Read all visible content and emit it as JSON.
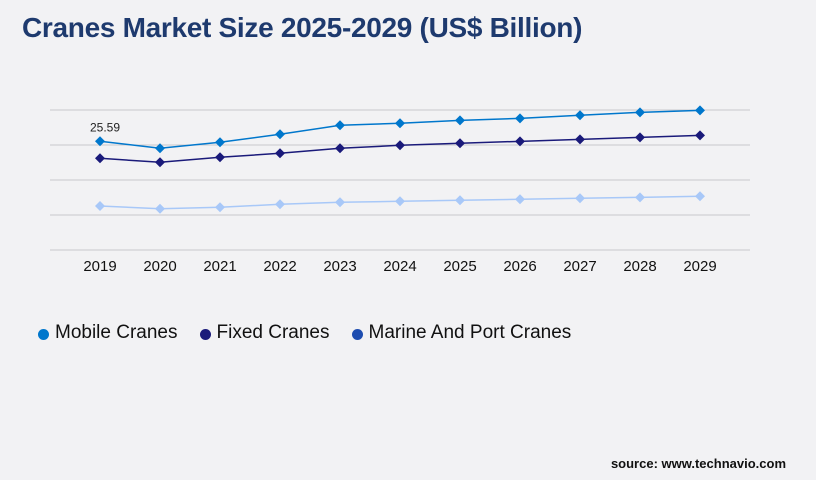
{
  "title": "Cranes Market Size 2025-2029 (US$ Billion)",
  "source": "source: www.technavio.com",
  "chart_data": {
    "type": "line",
    "title": "Cranes Market Size 2025-2029 (US$ Billion)",
    "xlabel": "",
    "ylabel": "",
    "categories": [
      "2019",
      "2020",
      "2021",
      "2022",
      "2023",
      "2024",
      "2025",
      "2026",
      "2027",
      "2028",
      "2029"
    ],
    "ylim": [
      0,
      32.95
    ],
    "grid": true,
    "legend_position": "bottom-left",
    "series": [
      {
        "name": "Mobile Cranes",
        "color": "#0077cc",
        "legend_color": "#0077cc",
        "values": [
          25.59,
          23.94,
          25.35,
          27.23,
          29.35,
          29.82,
          30.52,
          30.99,
          31.7,
          32.4,
          32.87
        ],
        "labels": {
          "0": "25.59"
        }
      },
      {
        "name": "Fixed Cranes",
        "color": "#1a1a7a",
        "legend_color": "#1a1a7a",
        "values": [
          21.59,
          20.64,
          21.82,
          22.76,
          23.94,
          24.64,
          25.11,
          25.58,
          26.05,
          26.52,
          26.99
        ]
      },
      {
        "name": "Marine And Port Cranes",
        "color": "#a8c8f8",
        "legend_color": "#1e4db0",
        "values": [
          10.36,
          9.72,
          10.05,
          10.76,
          11.23,
          11.46,
          11.7,
          11.93,
          12.17,
          12.4,
          12.64
        ]
      }
    ]
  }
}
